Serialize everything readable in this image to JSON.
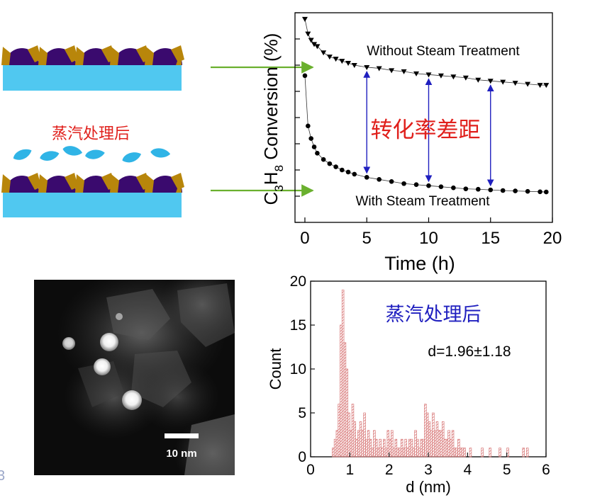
{
  "schematic": {
    "steam_label": "蒸汽处理后"
  },
  "tem": {
    "scale_label": "10 nm"
  },
  "colors": {
    "support": "#50c8f0",
    "particle": "#3a0a6e",
    "shell": "#b8860b",
    "steam": "#30b4e6",
    "arrow": "#6ab02e",
    "double_arrow": "#1f1fbf",
    "red_text": "#e0201c",
    "blue_text": "#1f1fbf",
    "hist_bar": "#d87878"
  },
  "chart_data": [
    {
      "type": "scatter",
      "ylabel_parts": [
        "C",
        "3",
        "H",
        "8",
        " Conversion (%)"
      ],
      "xlabel": "Time (h)",
      "xlim": [
        -0.8,
        20
      ],
      "x_ticks": [
        0,
        5,
        10,
        15,
        20
      ],
      "ylim": [
        0,
        100
      ],
      "y_ticks_unlabeled": [
        0,
        12.5,
        25,
        37.5,
        50,
        62.5,
        75,
        87.5,
        100
      ],
      "series": [
        {
          "name": "Without Steam Treatment",
          "marker": "triangle-down",
          "x": [
            0,
            0.25,
            0.5,
            0.75,
            1,
            1.5,
            2,
            2.5,
            3,
            3.5,
            4,
            5,
            6,
            7,
            8,
            9,
            10,
            11,
            12,
            13,
            14,
            15,
            16,
            17,
            18,
            19,
            19.5
          ],
          "y": [
            97,
            90,
            87,
            85,
            84,
            81,
            79,
            78,
            77,
            76,
            75,
            74,
            73.5,
            72.5,
            72,
            71,
            70.5,
            70,
            69.5,
            69,
            68,
            67.5,
            67,
            66.5,
            66,
            65.5,
            65.5
          ]
        },
        {
          "name": "With Steam Treatment",
          "marker": "circle",
          "x": [
            0,
            0.25,
            0.5,
            0.75,
            1,
            1.5,
            2,
            2.5,
            3,
            3.5,
            4,
            5,
            6,
            7,
            8,
            9,
            10,
            11,
            12,
            13,
            14,
            15,
            16,
            17,
            18,
            19,
            19.5
          ],
          "y": [
            70,
            46,
            40,
            36,
            33,
            30,
            28,
            26.5,
            25,
            24,
            23,
            21.5,
            20.5,
            19.5,
            18.5,
            18,
            17.5,
            17,
            16.5,
            16,
            15.8,
            15.5,
            15.2,
            15,
            14.8,
            14.6,
            14.5
          ]
        }
      ],
      "gap_arrows_at_x": [
        5,
        10,
        15
      ],
      "annotations": [
        "转化率差距"
      ]
    },
    {
      "type": "bar",
      "xlabel": "d (nm)",
      "ylabel": "Count",
      "xlim": [
        0,
        6
      ],
      "ylim": [
        0,
        20
      ],
      "x_ticks": [
        0,
        1,
        2,
        3,
        4,
        5,
        6
      ],
      "y_ticks": [
        0,
        5,
        10,
        15,
        20
      ],
      "bin_width": 0.05,
      "annotations": [
        "蒸汽处理后",
        "d=1.96±1.18"
      ],
      "bins": [
        [
          0.55,
          1
        ],
        [
          0.6,
          2
        ],
        [
          0.65,
          3
        ],
        [
          0.7,
          6
        ],
        [
          0.75,
          15
        ],
        [
          0.8,
          19
        ],
        [
          0.85,
          13
        ],
        [
          0.9,
          10
        ],
        [
          0.95,
          5
        ],
        [
          1.0,
          3
        ],
        [
          1.05,
          6
        ],
        [
          1.1,
          4
        ],
        [
          1.15,
          2
        ],
        [
          1.2,
          3
        ],
        [
          1.25,
          4
        ],
        [
          1.3,
          3
        ],
        [
          1.35,
          5
        ],
        [
          1.4,
          2
        ],
        [
          1.45,
          3
        ],
        [
          1.5,
          2
        ],
        [
          1.55,
          1
        ],
        [
          1.6,
          3
        ],
        [
          1.65,
          2
        ],
        [
          1.7,
          1
        ],
        [
          1.75,
          2
        ],
        [
          1.8,
          1
        ],
        [
          1.85,
          2
        ],
        [
          1.9,
          1
        ],
        [
          1.95,
          3
        ],
        [
          2.0,
          2
        ],
        [
          2.05,
          3
        ],
        [
          2.1,
          1
        ],
        [
          2.15,
          2
        ],
        [
          2.2,
          1
        ],
        [
          2.25,
          1
        ],
        [
          2.3,
          2
        ],
        [
          2.35,
          1
        ],
        [
          2.4,
          2
        ],
        [
          2.45,
          1
        ],
        [
          2.5,
          2
        ],
        [
          2.55,
          2
        ],
        [
          2.6,
          1
        ],
        [
          2.65,
          3
        ],
        [
          2.7,
          2
        ],
        [
          2.75,
          1
        ],
        [
          2.8,
          2
        ],
        [
          2.85,
          2
        ],
        [
          2.9,
          6
        ],
        [
          2.95,
          5
        ],
        [
          3.0,
          4
        ],
        [
          3.05,
          3
        ],
        [
          3.1,
          5
        ],
        [
          3.15,
          3
        ],
        [
          3.2,
          4
        ],
        [
          3.25,
          3
        ],
        [
          3.3,
          3
        ],
        [
          3.35,
          4
        ],
        [
          3.4,
          2
        ],
        [
          3.45,
          2
        ],
        [
          3.5,
          3
        ],
        [
          3.55,
          2
        ],
        [
          3.6,
          3
        ],
        [
          3.65,
          1
        ],
        [
          3.7,
          1
        ],
        [
          3.75,
          2
        ],
        [
          3.8,
          1
        ],
        [
          3.85,
          1
        ],
        [
          3.9,
          1
        ],
        [
          4.05,
          1
        ],
        [
          4.35,
          1
        ],
        [
          4.55,
          1
        ],
        [
          4.8,
          1
        ],
        [
          5.0,
          1
        ],
        [
          5.4,
          1
        ],
        [
          5.5,
          1
        ]
      ]
    }
  ]
}
